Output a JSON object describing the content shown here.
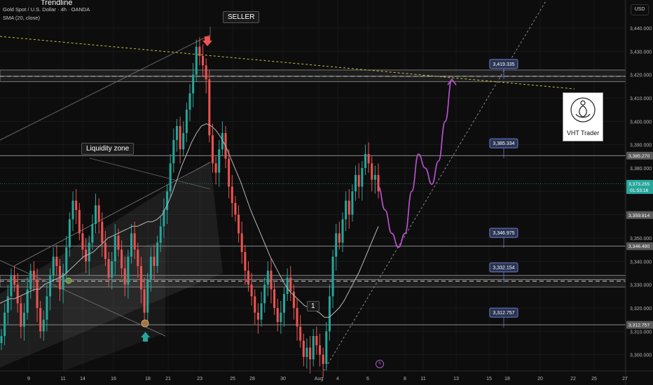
{
  "header": {
    "top_label": "Trendline",
    "symbol_line": "Gold Spot / U.S. Dollar · 4h · OANDA",
    "indicator_line": "SMA (20, close)"
  },
  "currency": "USD",
  "annotations": {
    "seller": "SELLER",
    "liquidity": "Liquidity zone",
    "wave": "1",
    "logo_text": "VHT Trader"
  },
  "chart_data": {
    "type": "candlestick",
    "ylim": [
      3293,
      3452
    ],
    "y_ticks": [
      3300,
      3310,
      3320,
      3330,
      3340,
      3350,
      3360,
      3370,
      3380,
      3390,
      3400,
      3410,
      3420,
      3430,
      3440
    ],
    "y_tick_labels": [
      "3,300.000",
      "3,310.000",
      "3,320.000",
      "3,330.000",
      "3,340.000",
      "3,350.000",
      "3,360.000",
      "3,370.000",
      "3,380.000",
      "3,390.000",
      "3,400.000",
      "3,410.000",
      "3,420.000",
      "3,430.000",
      "3,440.000"
    ],
    "x_ticks": [
      "9",
      "11",
      "14",
      "16",
      "18",
      "21",
      "23",
      "25",
      "28",
      "30",
      "Aug",
      "4",
      "6",
      "8",
      "11",
      "13",
      "15",
      "18",
      "20",
      "22",
      "25",
      "27"
    ],
    "price_labels": [
      {
        "value": 3385.27,
        "text": "3,385.270",
        "color": "#5a5a5a"
      },
      {
        "value": 3373.255,
        "text": "3,373.255",
        "color": "#26a69a",
        "sub": "01:53:16"
      },
      {
        "value": 3359.814,
        "text": "3,359.814",
        "color": "#5a5a5a"
      },
      {
        "value": 3346.49,
        "text": "3,346.490",
        "color": "#5a5a5a"
      },
      {
        "value": 3312.757,
        "text": "3,312.757",
        "color": "#5a5a5a"
      }
    ],
    "level_tags": [
      {
        "value": 3419.335,
        "text": "3,419.335"
      },
      {
        "value": 3385.334,
        "text": "3,385.334"
      },
      {
        "value": 3346.975,
        "text": "3,346.975"
      },
      {
        "value": 3332.154,
        "text": "3,332.154"
      },
      {
        "value": 3312.757,
        "text": "3,312.757"
      }
    ],
    "levels": [
      3419.3,
      3385.3,
      3346.5,
      3332.2,
      3312.8
    ],
    "closes": [
      3308,
      3318,
      3325,
      3334,
      3330,
      3322,
      3312,
      3318,
      3328,
      3336,
      3332,
      3320,
      3310,
      3315,
      3325,
      3334,
      3342,
      3338,
      3328,
      3335,
      3346,
      3358,
      3366,
      3362,
      3352,
      3345,
      3340,
      3348,
      3356,
      3364,
      3357,
      3348,
      3341,
      3333,
      3340,
      3351,
      3345,
      3337,
      3330,
      3342,
      3352,
      3345,
      3338,
      3328,
      3318,
      3332,
      3342,
      3338,
      3348,
      3355,
      3362,
      3370,
      3382,
      3392,
      3398,
      3388,
      3395,
      3405,
      3412,
      3420,
      3432,
      3428,
      3424,
      3418,
      3394,
      3382,
      3378,
      3388,
      3395,
      3384,
      3372,
      3365,
      3360,
      3352,
      3344,
      3336,
      3330,
      3325,
      3318,
      3315,
      3322,
      3330,
      3336,
      3328,
      3320,
      3314,
      3318,
      3326,
      3333,
      3327,
      3320,
      3312,
      3306,
      3299,
      3303,
      3298,
      3308,
      3304,
      3300,
      3296,
      3310,
      3325,
      3342,
      3352,
      3348,
      3358,
      3366,
      3360,
      3370,
      3377,
      3372,
      3380,
      3386,
      3382,
      3375,
      3377,
      3370
    ],
    "sma": [
      3322,
      3323,
      3324,
      3324,
      3325,
      3326,
      3327,
      3328,
      3328,
      3330,
      3331,
      3332,
      3333,
      3334,
      3336,
      3338,
      3340,
      3342,
      3343,
      3344,
      3346,
      3348,
      3350,
      3351,
      3352,
      3353,
      3354,
      3355,
      3355,
      3356,
      3357,
      3357,
      3358,
      3360,
      3364,
      3369,
      3375,
      3381,
      3386,
      3391,
      3395,
      3398,
      3399,
      3398,
      3396,
      3393,
      3389,
      3384,
      3379,
      3374,
      3368,
      3362,
      3357,
      3352,
      3347,
      3342,
      3338,
      3334,
      3330,
      3327,
      3325,
      3323,
      3321,
      3320,
      3319,
      3318,
      3316,
      3316,
      3318,
      3320,
      3323,
      3327,
      3331,
      3335,
      3340,
      3345,
      3350,
      3355
    ],
    "projection": [
      3372,
      3362,
      3352,
      3346,
      3352,
      3370,
      3386,
      3380,
      3373,
      3383,
      3400,
      3418
    ]
  }
}
